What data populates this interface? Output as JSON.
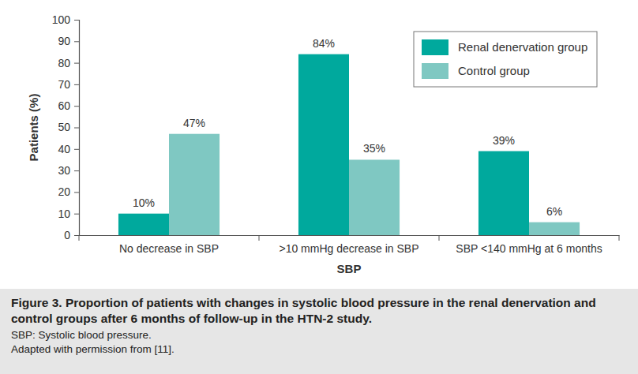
{
  "chart_data": {
    "type": "bar",
    "title": "Figure 3. Proportion of patients with changes in systolic blood pressure in the renal denervation and control groups after 6 months of follow-up in the HTN-2 study.",
    "annotations": [
      "SBP: Systolic blood pressure.",
      "Adapted with permission from [11]."
    ],
    "xlabel": "SBP",
    "ylabel": "Patients (%)",
    "categories": [
      "No decrease in SBP",
      ">10 mmHg decrease in SBP",
      "SBP <140 mmHg at 6 months"
    ],
    "series": [
      {
        "name": "Renal denervation group",
        "color": "#00a99d",
        "values": [
          10,
          84,
          39
        ],
        "value_labels": [
          "10%",
          "84%",
          "39%"
        ]
      },
      {
        "name": "Control group",
        "color": "#7fc8c2",
        "values": [
          47,
          35,
          6
        ],
        "value_labels": [
          "47%",
          "35%",
          "6%"
        ]
      }
    ],
    "ylim": [
      0,
      100
    ],
    "yticks": [
      0,
      10,
      20,
      30,
      40,
      50,
      60,
      70,
      80,
      90,
      100
    ],
    "grid": false,
    "legend": "upper right",
    "data_labels": true
  }
}
